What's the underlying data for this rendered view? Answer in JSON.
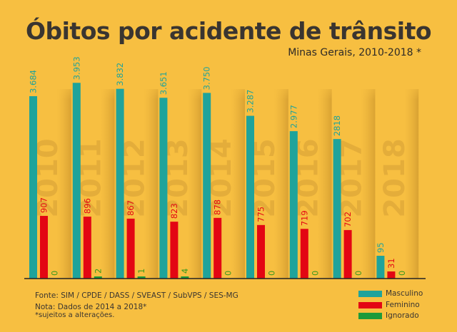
{
  "chart_data": {
    "type": "bar",
    "title": "Óbitos por acidente de trânsito",
    "subtitle": "Minas Gerais, 2010-2018 *",
    "categories": [
      "2010",
      "2011",
      "2012",
      "2013",
      "2014",
      "2015",
      "2016",
      "2017",
      "2018"
    ],
    "series": [
      {
        "name": "Masculino",
        "color": "#1fa39b",
        "values": [
          3684,
          3953,
          3832,
          3651,
          3750,
          3287,
          2977,
          2818,
          95
        ],
        "labels": [
          "3.684",
          "3.953",
          "3.832",
          "3.651",
          "3.750",
          "3.287",
          "2.977",
          "2818",
          "95"
        ]
      },
      {
        "name": "Feminino",
        "color": "#e30613",
        "values": [
          907,
          896,
          867,
          823,
          878,
          775,
          719,
          702,
          31
        ],
        "labels": [
          "907",
          "896",
          "867",
          "823",
          "878",
          "775",
          "719",
          "702",
          "31"
        ]
      },
      {
        "name": "Ignorado",
        "color": "#1d9a3a",
        "values": [
          0,
          2,
          1,
          4,
          0,
          0,
          0,
          0,
          0
        ],
        "labels": [
          "0",
          "2",
          "1",
          "4",
          "0",
          "0",
          "0",
          "0",
          "0"
        ]
      }
    ],
    "xlabel": "",
    "ylabel": "",
    "grid": false,
    "legend": "bottom-right"
  },
  "footer": {
    "source": "Fonte: SIM / CPDE / DASS / SVEAST / SubVPS / SES-MG",
    "note": "Nota: Dados de 2014 a 2018*",
    "disclaimer": "*sujeitos a alterações."
  }
}
